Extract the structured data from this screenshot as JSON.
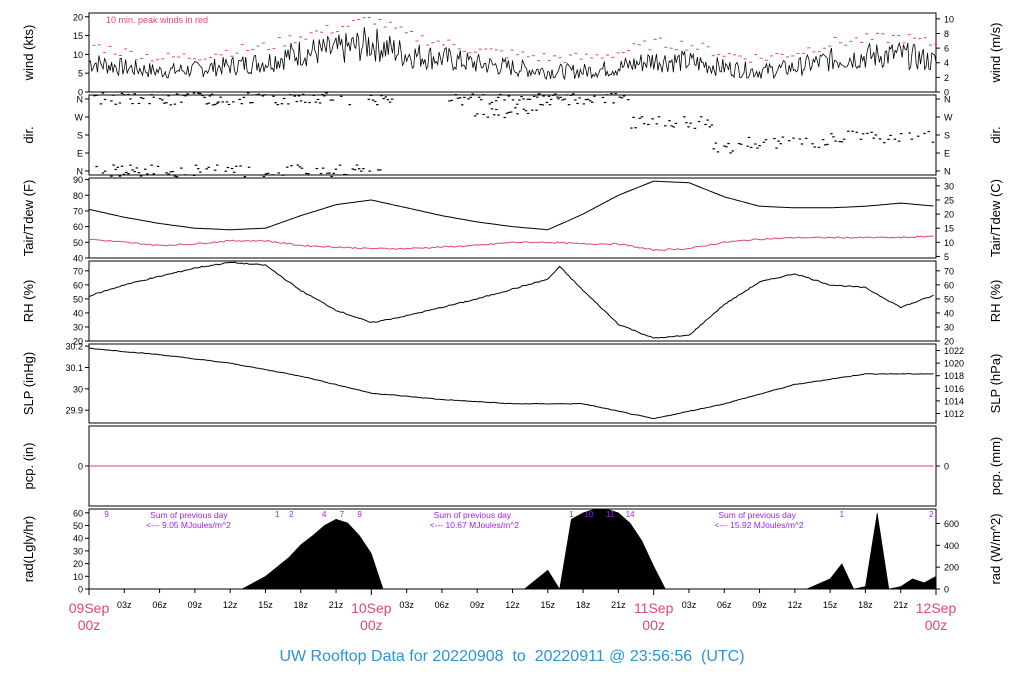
{
  "footer_title": "UW Rooftop Data for 20220908  to  20220911 @ 23:56:56  (UTC)",
  "colors": {
    "red": "#e0457b",
    "black": "#000000",
    "purple": "#a020f0",
    "blue": "#2a94d6"
  },
  "chart_data": [
    {
      "type": "line",
      "id": "wind",
      "ylabel": "wind (kts)",
      "ylabel_right": "wind (m/s)",
      "ylim": [
        0,
        21
      ],
      "yticks": [
        0,
        5,
        10,
        15,
        20
      ],
      "right_ticks": [
        0,
        2,
        4,
        6,
        8,
        10
      ],
      "annotation": "10 min. peak winds in red",
      "series": [
        {
          "role": "sustained",
          "color": "#000000",
          "x": [
            0,
            3,
            6,
            9,
            12,
            15,
            18,
            21,
            24,
            27,
            30,
            33,
            36,
            39,
            42,
            45,
            48,
            51,
            54,
            57,
            60,
            63,
            66,
            69,
            72
          ],
          "values": [
            8,
            6.5,
            5.5,
            6,
            7,
            8,
            10.5,
            11,
            13,
            10,
            9,
            7.5,
            6.5,
            5.5,
            5.5,
            6.5,
            8.5,
            8,
            6.5,
            5.5,
            6.5,
            8.5,
            9.5,
            10,
            8
          ]
        },
        {
          "role": "peak",
          "color": "#e0457b",
          "x": [
            0,
            3,
            6,
            9,
            12,
            15,
            18,
            21,
            24,
            27,
            30,
            33,
            36,
            39,
            42,
            45,
            48,
            51,
            54,
            57,
            60,
            63,
            66,
            69,
            72
          ],
          "values": [
            12.5,
            10.5,
            9,
            9.5,
            11,
            12,
            15,
            17,
            19.5,
            15,
            13,
            11,
            10,
            9,
            9,
            10.5,
            13,
            12.5,
            10,
            9,
            10.5,
            13,
            14,
            14.5,
            12.5
          ]
        }
      ]
    },
    {
      "type": "scatter",
      "id": "dir",
      "ylabel": "dir.",
      "ylabel_right": "dir.",
      "yticks": [
        "N",
        "W",
        "S",
        "E",
        "N"
      ],
      "segments": [
        {
          "x": [
            0,
            11
          ],
          "dir": "N",
          "level": 4
        },
        {
          "x": [
            10,
            26
          ],
          "dir": "N",
          "level": 4
        },
        {
          "x": [
            0,
            25
          ],
          "dir": "N",
          "level": 0
        },
        {
          "x": [
            30,
            40
          ],
          "dir": "N",
          "level": 4
        },
        {
          "x": [
            32,
            38
          ],
          "dir": "W",
          "level": 3.2
        },
        {
          "x": [
            38,
            46
          ],
          "dir": "N",
          "level": 4
        },
        {
          "x": [
            46,
            53
          ],
          "dir": "W",
          "level": 2.7
        },
        {
          "x": [
            53,
            56
          ],
          "dir": "S",
          "level": 1.3
        },
        {
          "x": [
            56,
            63
          ],
          "dir": "S",
          "level": 1.6
        },
        {
          "x": [
            63,
            72
          ],
          "dir": "S",
          "level": 1.9
        }
      ]
    },
    {
      "type": "line",
      "id": "temp",
      "ylabel": "Tair/Tdew (F)",
      "ylabel_right": "Tair/Tdew (C)",
      "ylim": [
        40,
        91
      ],
      "yticks": [
        40,
        50,
        60,
        70,
        80,
        90
      ],
      "right_ticks": [
        5,
        10,
        15,
        20,
        25,
        30
      ],
      "series": [
        {
          "role": "Tair",
          "color": "#000000",
          "x": [
            0,
            3,
            6,
            9,
            12,
            15,
            18,
            21,
            24,
            27,
            30,
            33,
            36,
            39,
            42,
            45,
            48,
            51,
            54,
            57,
            60,
            63,
            66,
            69,
            72
          ],
          "values": [
            71,
            66,
            62,
            59,
            58,
            59,
            67,
            74,
            77,
            72,
            67,
            63,
            60,
            58,
            68,
            80,
            89,
            88,
            79,
            73,
            72,
            72,
            73,
            75,
            73
          ]
        },
        {
          "role": "Tdew",
          "color": "#e0457b",
          "x": [
            0,
            3,
            6,
            9,
            12,
            15,
            18,
            21,
            24,
            27,
            30,
            33,
            36,
            39,
            42,
            45,
            48,
            51,
            54,
            57,
            60,
            63,
            66,
            69,
            72
          ],
          "values": [
            52,
            50,
            48,
            49,
            51,
            51,
            48,
            47,
            46,
            46,
            47,
            48,
            50,
            50,
            49,
            49,
            45,
            46,
            50,
            52,
            53,
            53,
            53,
            53,
            54
          ]
        }
      ]
    },
    {
      "type": "line",
      "id": "rh",
      "ylabel": "RH (%)",
      "ylabel_right": "RH (%)",
      "ylim": [
        20,
        77
      ],
      "yticks": [
        20,
        30,
        40,
        50,
        60,
        70
      ],
      "right_ticks": [
        20,
        30,
        40,
        50,
        60,
        70
      ],
      "series": [
        {
          "role": "RH",
          "color": "#000000",
          "x": [
            0,
            3,
            6,
            9,
            12,
            15,
            18,
            21,
            24,
            27,
            30,
            33,
            36,
            39,
            40,
            42,
            45,
            48,
            51,
            54,
            57,
            60,
            63,
            66,
            69,
            72
          ],
          "values": [
            52,
            60,
            66,
            72,
            76,
            74,
            56,
            42,
            33,
            38,
            44,
            50,
            57,
            64,
            73,
            56,
            32,
            22,
            24,
            46,
            62,
            68,
            60,
            58,
            44,
            53
          ]
        }
      ]
    },
    {
      "type": "line",
      "id": "slp",
      "ylabel": "SLP (inHg)",
      "ylabel_right": "SLP (hPa)",
      "ylim": [
        29.84,
        30.21
      ],
      "yticks": [
        29.9,
        30.0,
        30.1,
        30.2
      ],
      "right_ticks": [
        1012,
        1014,
        1016,
        1018,
        1020,
        1022
      ],
      "series": [
        {
          "role": "SLP",
          "color": "#000000",
          "x": [
            0,
            6,
            12,
            18,
            24,
            30,
            36,
            42,
            48,
            54,
            60,
            66,
            72
          ],
          "values": [
            30.19,
            30.16,
            30.12,
            30.06,
            29.98,
            29.95,
            29.93,
            29.93,
            29.86,
            29.93,
            30.02,
            30.07,
            30.07
          ]
        }
      ]
    },
    {
      "type": "line",
      "id": "pcp",
      "ylabel": "pcp. (in)",
      "ylabel_right": "pcp. (mm)",
      "ylim": [
        -1,
        1
      ],
      "yticks": [
        0
      ],
      "right_ticks": [
        0
      ],
      "series": [
        {
          "role": "pcp",
          "color": "#e0457b",
          "x": [
            0,
            72
          ],
          "values": [
            0,
            0
          ]
        }
      ]
    },
    {
      "type": "area",
      "id": "rad",
      "ylabel": "rad(Lgly/hr)",
      "ylabel_right": "rad (W/m^2)",
      "ylim": [
        0,
        63
      ],
      "yticks": [
        0,
        10,
        20,
        30,
        40,
        50,
        60
      ],
      "right_ticks": [
        0,
        200,
        400,
        600
      ],
      "series": [
        {
          "role": "day1",
          "color": "#000000",
          "x": [
            13,
            15,
            17,
            18,
            19,
            20,
            21,
            22,
            23,
            24,
            25
          ],
          "values": [
            0,
            10,
            25,
            35,
            42,
            50,
            55,
            52,
            42,
            28,
            0
          ]
        },
        {
          "role": "day2",
          "color": "#000000",
          "x": [
            37,
            39,
            40,
            41,
            42,
            43,
            44,
            45,
            46,
            47,
            48,
            49
          ],
          "values": [
            0,
            15,
            0,
            55,
            60,
            63,
            63,
            60,
            52,
            38,
            18,
            0
          ]
        },
        {
          "role": "day3",
          "color": "#000000",
          "x": [
            61,
            62,
            63,
            64,
            65,
            66,
            67,
            68,
            69,
            70,
            71,
            72
          ],
          "values": [
            0,
            4,
            8,
            20,
            0,
            2,
            60,
            0,
            2,
            8,
            5,
            10
          ]
        }
      ],
      "day_marks": [
        {
          "x": 1.5,
          "label": "9"
        },
        {
          "x": 16.0,
          "label": "1"
        },
        {
          "x": 17.2,
          "label": "2"
        },
        {
          "x": 20.0,
          "label": "4"
        },
        {
          "x": 21.5,
          "label": "7"
        },
        {
          "x": 23.0,
          "label": "9"
        },
        {
          "x": 41.0,
          "label": "1"
        },
        {
          "x": 42.5,
          "label": "10"
        },
        {
          "x": 44.3,
          "label": "11"
        },
        {
          "x": 46.0,
          "label": "14"
        },
        {
          "x": 64.0,
          "label": "1"
        },
        {
          "x": 71.6,
          "label": "2"
        }
      ],
      "annotations": [
        {
          "x": 5.2,
          "line1": "Sum of previous day",
          "line2": "<--- 9.05 MJoules/m^2"
        },
        {
          "x": 29.3,
          "line1": "Sum of previous day",
          "line2": "<--- 10.67 MJoules/m^2"
        },
        {
          "x": 53.5,
          "line1": "Sum of previous day",
          "line2": "<--- 15.92 MJoules/m^2"
        }
      ]
    }
  ],
  "time_axis": {
    "hour_ticks": [
      {
        "x": 3,
        "label": "03z"
      },
      {
        "x": 6,
        "label": "06z"
      },
      {
        "x": 9,
        "label": "09z"
      },
      {
        "x": 12,
        "label": "12z"
      },
      {
        "x": 15,
        "label": "15z"
      },
      {
        "x": 18,
        "label": "18z"
      },
      {
        "x": 21,
        "label": "21z"
      },
      {
        "x": 27,
        "label": "03z"
      },
      {
        "x": 30,
        "label": "06z"
      },
      {
        "x": 33,
        "label": "09z"
      },
      {
        "x": 36,
        "label": "12z"
      },
      {
        "x": 39,
        "label": "15z"
      },
      {
        "x": 42,
        "label": "18z"
      },
      {
        "x": 45,
        "label": "21z"
      },
      {
        "x": 51,
        "label": "03z"
      },
      {
        "x": 54,
        "label": "06z"
      },
      {
        "x": 57,
        "label": "09z"
      },
      {
        "x": 60,
        "label": "12z"
      },
      {
        "x": 63,
        "label": "15z"
      },
      {
        "x": 66,
        "label": "18z"
      },
      {
        "x": 69,
        "label": "21z"
      }
    ],
    "day_ticks": [
      {
        "x": 0,
        "date": "09Sep",
        "hour": "00z"
      },
      {
        "x": 24,
        "date": "10Sep",
        "hour": "00z"
      },
      {
        "x": 48,
        "date": "11Sep",
        "hour": "00z"
      },
      {
        "x": 72,
        "date": "12Sep",
        "hour": "00z"
      }
    ]
  }
}
